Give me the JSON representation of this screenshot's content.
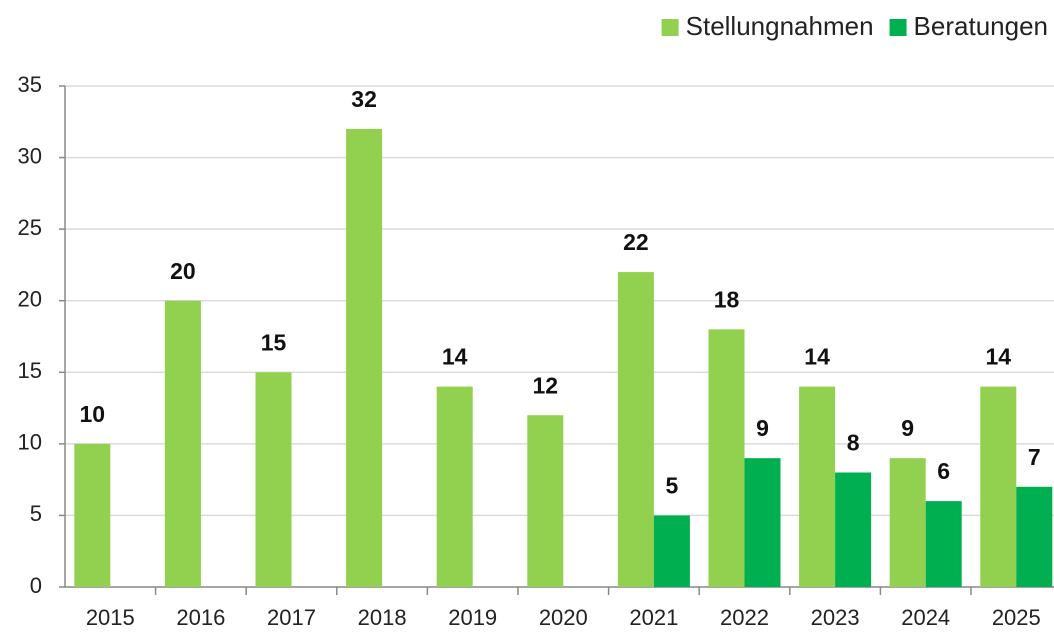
{
  "chart_data": {
    "type": "bar",
    "categories": [
      "2015",
      "2016",
      "2017",
      "2018",
      "2019",
      "2020",
      "2021",
      "2022",
      "2023",
      "2024",
      "2025"
    ],
    "series": [
      {
        "name": "Stellungnahmen",
        "color": "#92d050",
        "values": [
          10,
          20,
          15,
          32,
          14,
          12,
          22,
          18,
          14,
          9,
          14
        ]
      },
      {
        "name": "Beratungen",
        "color": "#00b050",
        "values": [
          null,
          null,
          null,
          null,
          null,
          null,
          5,
          9,
          8,
          6,
          7
        ]
      }
    ],
    "ylim": [
      0,
      35
    ],
    "yticks": [
      0,
      5,
      10,
      15,
      20,
      25,
      30,
      35
    ],
    "grid": true,
    "legend": "top-right"
  }
}
